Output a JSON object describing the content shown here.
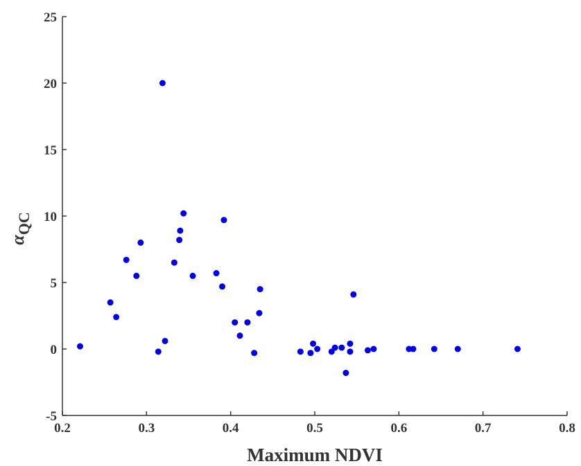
{
  "chart_data": {
    "type": "scatter",
    "xlabel": "Maximum NDVI",
    "ylabel": {
      "symbol": "α",
      "subscript": "QC"
    },
    "color": "#0000ee",
    "x": [
      0.221,
      0.257,
      0.264,
      0.276,
      0.288,
      0.293,
      0.314,
      0.319,
      0.322,
      0.333,
      0.339,
      0.34,
      0.344,
      0.355,
      0.383,
      0.39,
      0.392,
      0.405,
      0.411,
      0.42,
      0.428,
      0.434,
      0.435,
      0.483,
      0.495,
      0.498,
      0.503,
      0.52,
      0.524,
      0.532,
      0.537,
      0.542,
      0.542,
      0.546,
      0.563,
      0.57,
      0.612,
      0.617,
      0.642,
      0.67,
      0.741
    ],
    "values": [
      0.2,
      3.5,
      2.4,
      6.7,
      5.5,
      8.0,
      -0.2,
      20.0,
      0.6,
      6.5,
      8.2,
      8.9,
      10.2,
      5.5,
      5.7,
      4.7,
      9.7,
      2.0,
      1.0,
      2.0,
      -0.3,
      2.7,
      4.5,
      -0.2,
      -0.3,
      0.4,
      0.0,
      -0.2,
      0.1,
      0.1,
      -1.8,
      0.4,
      -0.2,
      4.1,
      -0.1,
      0.0,
      0.0,
      0.0,
      0.0,
      0.0,
      0.0
    ],
    "xlim": [
      0.2,
      0.8
    ],
    "xticks": [
      0.2,
      0.3,
      0.4,
      0.5,
      0.6,
      0.7,
      0.8
    ],
    "ylim": [
      -5,
      25
    ],
    "yticks": [
      -5,
      0,
      5,
      10,
      15,
      20,
      25
    ]
  }
}
